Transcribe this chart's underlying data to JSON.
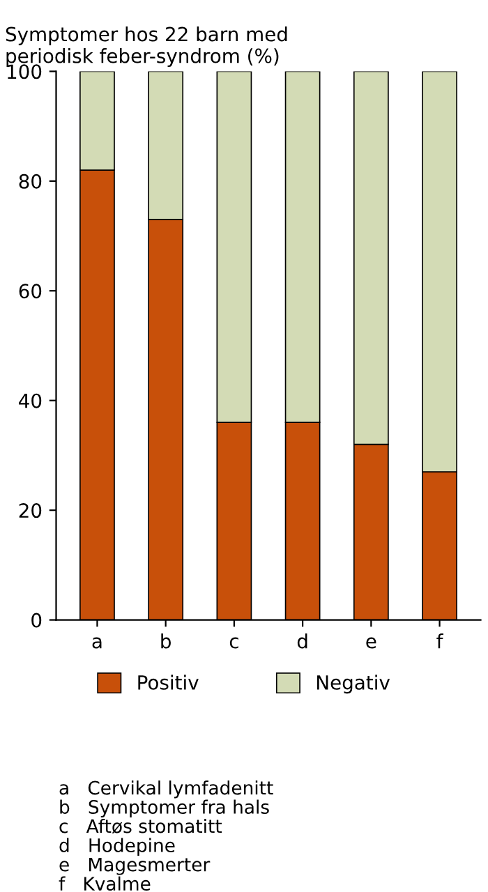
{
  "chart_data": {
    "type": "bar",
    "title": "Symptomer hos 22 barn med\nperiodisk feber-syndrom (%)",
    "categories": [
      "a",
      "b",
      "c",
      "d",
      "e",
      "f"
    ],
    "stacked": true,
    "series": [
      {
        "name": "Positiv",
        "color": "#c8500a",
        "values": [
          82,
          73,
          36,
          36,
          32,
          27
        ]
      },
      {
        "name": "Negativ",
        "color": "#d3dbb5",
        "values": [
          18,
          27,
          64,
          64,
          68,
          73
        ]
      }
    ],
    "ylim": [
      0,
      100
    ],
    "yticks": [
      0,
      20,
      40,
      60,
      80,
      100
    ],
    "grid": false,
    "legend": "bottom",
    "annotations": [
      "a   Cervikal lymfadenitt",
      "b   Symptomer fra hals",
      "c   Aftøs stomatitt",
      "d   Hodepine",
      "e   Magesmerter",
      "f   Kvalme"
    ]
  }
}
